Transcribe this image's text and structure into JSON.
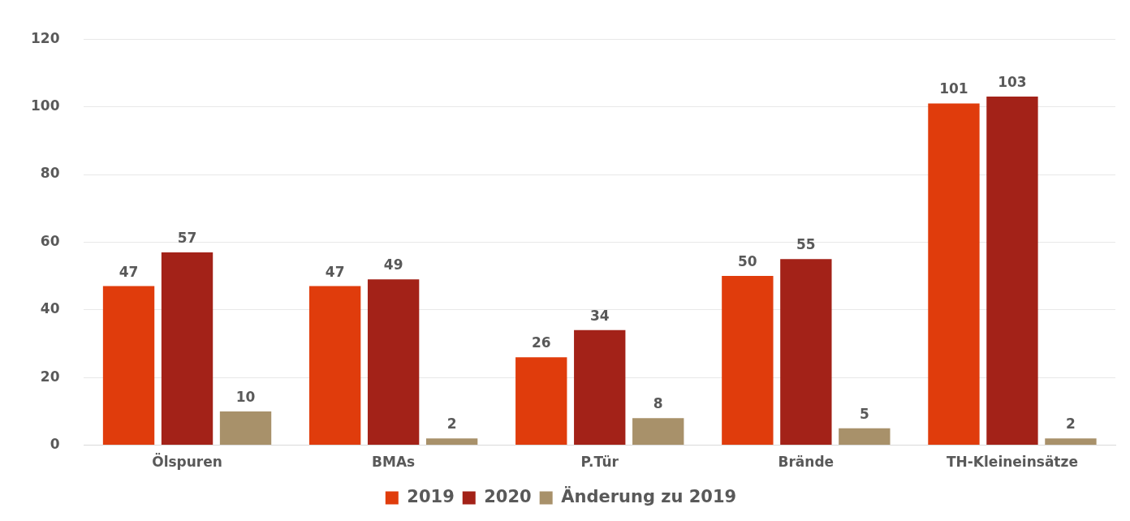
{
  "chart_data": {
    "type": "bar",
    "categories": [
      "Ölspuren",
      "BMAs",
      "P.Tür",
      "Brände",
      "TH-Kleineinsätze"
    ],
    "series": [
      {
        "name": "2019",
        "color": "#e03c0c",
        "values": [
          47,
          47,
          26,
          50,
          101
        ]
      },
      {
        "name": "2020",
        "color": "#a32218",
        "values": [
          57,
          49,
          34,
          55,
          103
        ]
      },
      {
        "name": "Änderung zu 2019",
        "color": "#a8916a",
        "values": [
          10,
          2,
          8,
          5,
          2
        ]
      }
    ],
    "ylim": [
      0,
      120
    ],
    "yticks": [
      0,
      20,
      40,
      60,
      80,
      100,
      120
    ],
    "grid": "y",
    "legend": "bottom",
    "data_labels": true
  }
}
